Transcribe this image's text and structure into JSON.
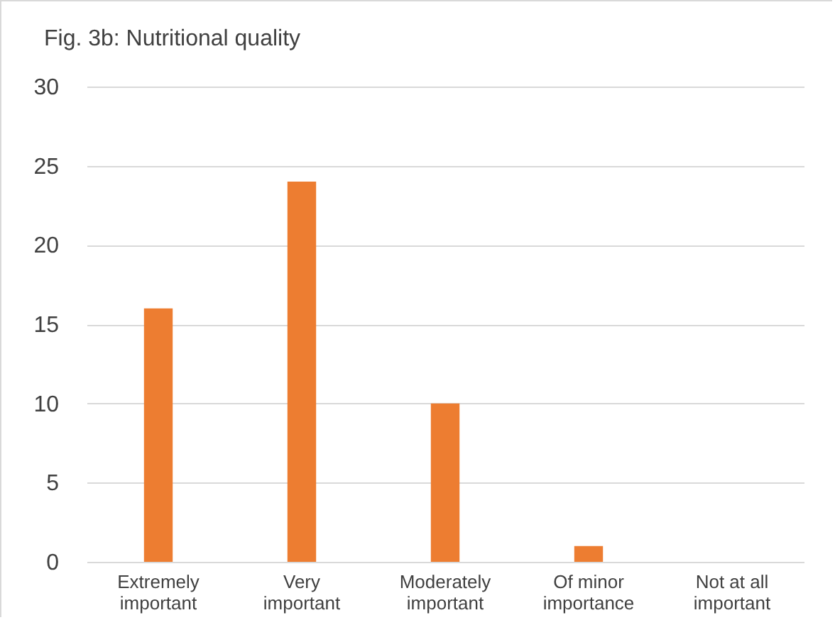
{
  "chart_data": {
    "type": "bar",
    "title": "Fig. 3b: Nutritional quality",
    "categories": [
      "Extremely important",
      "Very important",
      "Moderately important",
      "Of minor importance",
      "Not at all important"
    ],
    "values": [
      16,
      24,
      10,
      1,
      0
    ],
    "color": "#ed7d31",
    "ylim": [
      0,
      30
    ],
    "yticks": [
      0,
      5,
      10,
      15,
      20,
      25,
      30
    ],
    "grid": "y"
  }
}
